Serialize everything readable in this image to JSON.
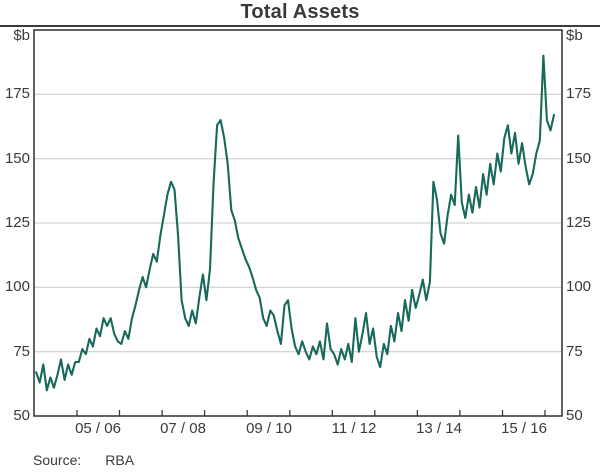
{
  "source": {
    "label": "Source:",
    "value": "RBA"
  },
  "chart_data": {
    "type": "line",
    "title": "Total Assets",
    "unit_label": "$b",
    "xlabel": "",
    "ylabel": "$b",
    "ylim": [
      50,
      200
    ],
    "yticks": [
      50,
      75,
      100,
      125,
      150,
      175
    ],
    "gridlines": true,
    "legend": "none",
    "y_axis_labels": [
      "$b",
      "175",
      "150",
      "125",
      "100",
      "75",
      "50"
    ],
    "x_labels": [
      "05 / 06",
      "07 / 08",
      "09 / 10",
      "11 / 12",
      "13 / 14",
      "15 / 16"
    ],
    "x_ticks_at": [
      "Jun 2005",
      "Jun 2006",
      "Jun 2007",
      "Jun 2008",
      "Jun 2009",
      "Jun 2010",
      "Jun 2011",
      "Jun 2012",
      "Jun 2013",
      "Jun 2014",
      "Jun 2015",
      "Jun 2016"
    ],
    "frequency": "monthly",
    "x_start": "Jul 2004",
    "x_end": "Sep 2016",
    "series": [
      {
        "name": "Total Assets",
        "color": "#17695a",
        "values": [
          67,
          63,
          70,
          60,
          65,
          61,
          66,
          72,
          64,
          70,
          66,
          71,
          71,
          76,
          74,
          80,
          77,
          84,
          81,
          88,
          85,
          88,
          82,
          79,
          78,
          83,
          80,
          88,
          93,
          99,
          104,
          100,
          107,
          113,
          110,
          120,
          128,
          136,
          141,
          138,
          120,
          95,
          88,
          85,
          91,
          86,
          96,
          105,
          95,
          107,
          140,
          163,
          165,
          158,
          148,
          130,
          126,
          119,
          115,
          111,
          108,
          104,
          99,
          96,
          88,
          85,
          91,
          89,
          83,
          78,
          93,
          95,
          84,
          77,
          74,
          79,
          75,
          72,
          77,
          74,
          79,
          72,
          86,
          76,
          74,
          70,
          76,
          72,
          78,
          71,
          88,
          75,
          82,
          90,
          78,
          84,
          73,
          69,
          78,
          74,
          85,
          79,
          90,
          83,
          95,
          87,
          99,
          92,
          97,
          103,
          95,
          102,
          141,
          134,
          121,
          117,
          128,
          136,
          132,
          159,
          133,
          127,
          136,
          129,
          139,
          131,
          144,
          136,
          148,
          140,
          152,
          145,
          158,
          163,
          152,
          160,
          148,
          156,
          147,
          140,
          144,
          152,
          157,
          190,
          165,
          161,
          167
        ]
      }
    ]
  }
}
